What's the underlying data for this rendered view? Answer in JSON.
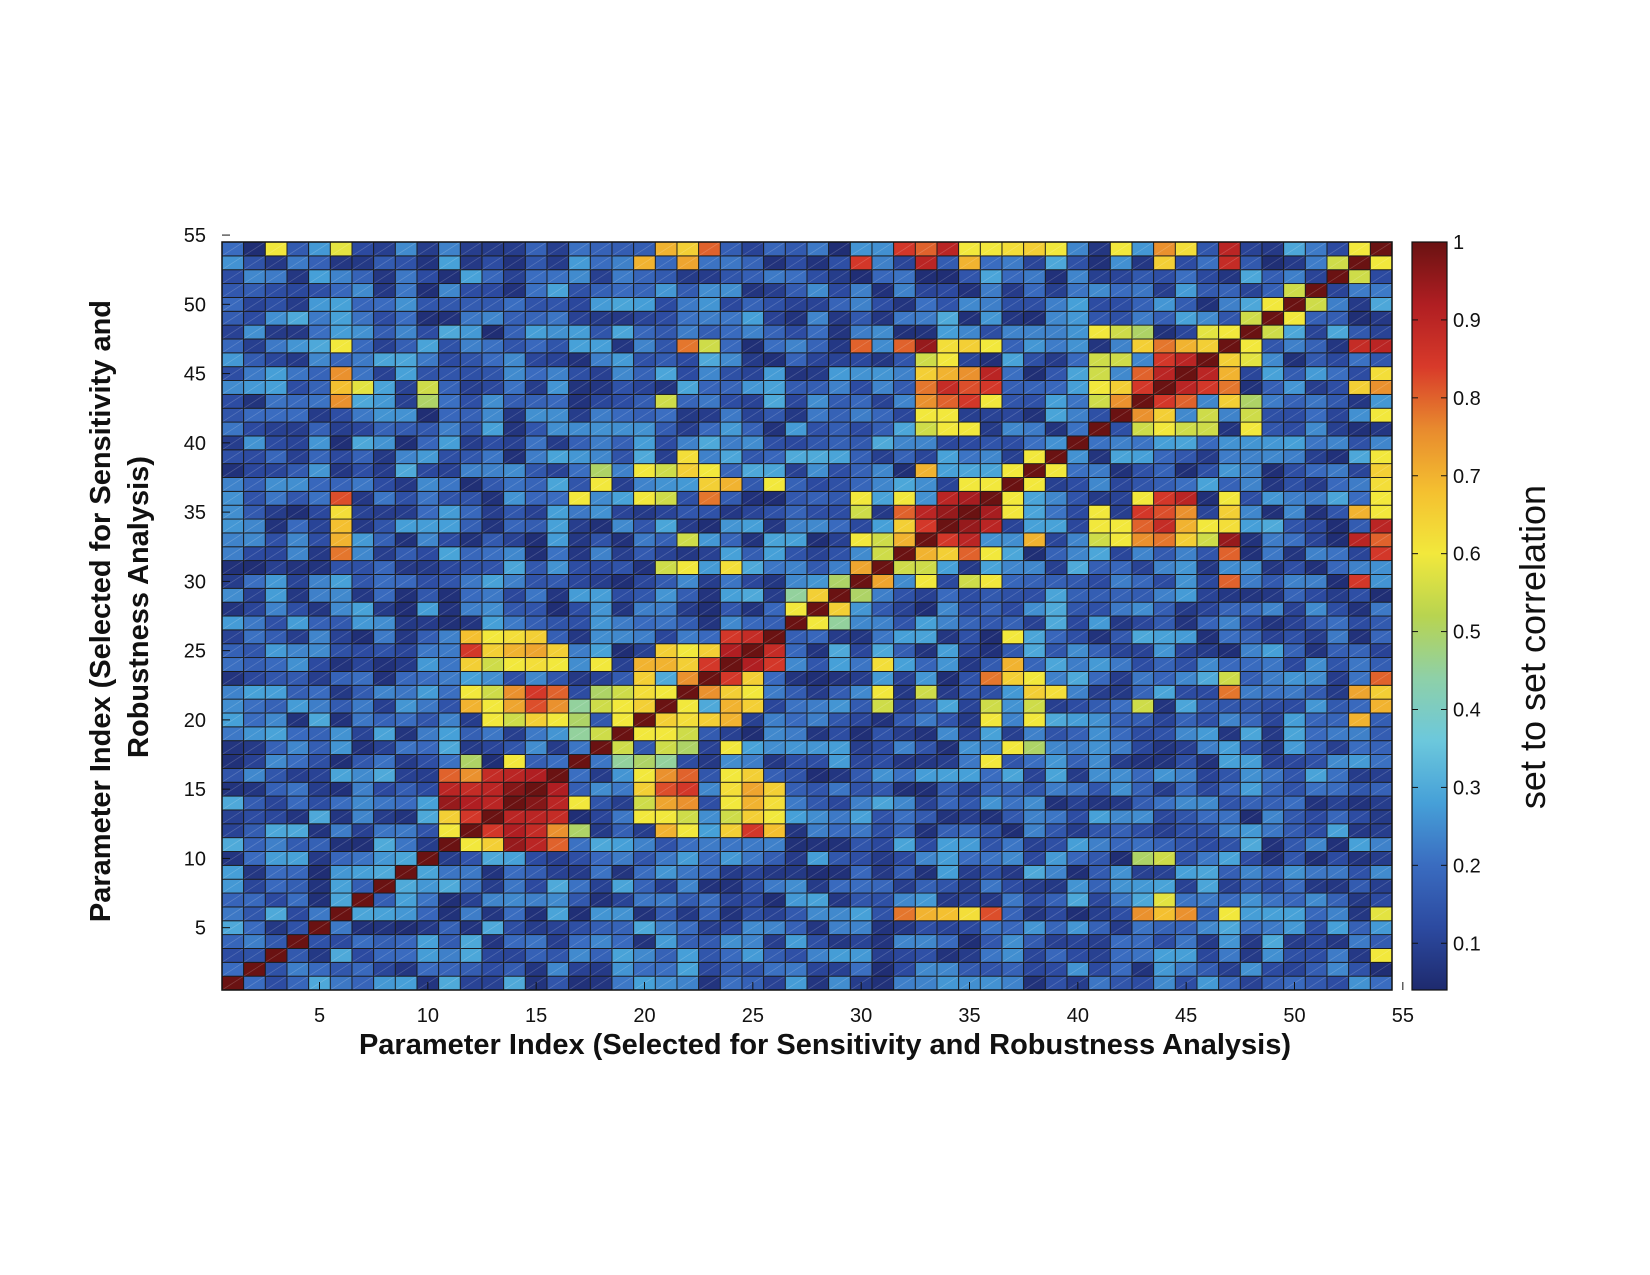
{
  "chart_data": {
    "type": "heatmap",
    "matrix_size": 54,
    "symmetric": true,
    "diagonal_value": 1.0,
    "background_range": [
      0.05,
      0.3
    ],
    "xlabel": "Parameter Index (Selected for Sensitivity and Robustness Analysis)",
    "ylabel_lines": [
      "Parameter Index (Selected for Sensitivity and",
      "Robustness Analysis)"
    ],
    "x_ticks": [
      5,
      10,
      15,
      20,
      25,
      30,
      35,
      40,
      45,
      50,
      55
    ],
    "y_ticks": [
      5,
      10,
      15,
      20,
      25,
      30,
      35,
      40,
      45,
      50,
      55
    ],
    "xlim": [
      0.5,
      54.5
    ],
    "ylim": [
      0.5,
      54.5
    ],
    "colorbar": {
      "label": "set to set correlation",
      "range": [
        0.04,
        1.0
      ],
      "ticks": [
        0.1,
        0.2,
        0.3,
        0.4,
        0.5,
        0.6,
        0.7,
        0.8,
        0.9,
        1
      ],
      "colormap": "jet",
      "colors": [
        "#1e2a6e",
        "#2c4aa0",
        "#3a6cc0",
        "#46a0d8",
        "#6cc8dc",
        "#8ed0a8",
        "#b8d450",
        "#f2e83c",
        "#f4c030",
        "#e88a2e",
        "#d83a2a",
        "#b01e22",
        "#6a1212"
      ]
    },
    "highlighted_cells": [
      [
        13,
        12,
        0.85
      ],
      [
        14,
        12,
        0.92
      ],
      [
        15,
        12,
        0.88
      ],
      [
        16,
        12,
        0.75
      ],
      [
        13,
        11,
        0.65
      ],
      [
        14,
        11,
        0.95
      ],
      [
        15,
        11,
        0.9
      ],
      [
        16,
        11,
        0.8
      ],
      [
        14,
        13,
        0.9
      ],
      [
        15,
        13,
        0.9
      ],
      [
        16,
        13,
        0.88
      ],
      [
        15,
        14,
        0.97
      ],
      [
        16,
        14,
        0.9
      ],
      [
        16,
        15,
        0.92
      ],
      [
        12,
        11,
        0.6
      ],
      [
        17,
        12,
        0.5
      ],
      [
        17,
        14,
        0.6
      ],
      [
        24,
        23,
        0.85
      ],
      [
        25,
        23,
        0.65
      ],
      [
        25,
        24,
        0.92
      ],
      [
        26,
        24,
        0.85
      ],
      [
        26,
        25,
        0.88
      ],
      [
        24,
        21,
        0.7
      ],
      [
        25,
        21,
        0.65
      ],
      [
        25,
        22,
        0.6
      ],
      [
        24,
        22,
        0.65
      ],
      [
        23,
        22,
        0.75
      ],
      [
        22,
        21,
        0.6
      ],
      [
        22,
        20,
        0.62
      ],
      [
        21,
        20,
        0.8
      ],
      [
        23,
        20,
        0.65
      ],
      [
        24,
        20,
        0.7
      ],
      [
        19,
        18,
        0.55
      ],
      [
        20,
        19,
        0.6
      ],
      [
        20,
        17,
        0.4
      ],
      [
        19,
        17,
        0.45
      ],
      [
        13,
        22,
        0.65
      ],
      [
        13,
        21,
        0.6
      ],
      [
        15,
        22,
        0.7
      ],
      [
        15,
        21,
        0.75
      ],
      [
        16,
        22,
        0.8
      ],
      [
        16,
        21,
        0.75
      ],
      [
        15,
        25,
        0.7
      ],
      [
        16,
        25,
        0.65
      ],
      [
        15,
        24,
        0.65
      ],
      [
        16,
        24,
        0.6
      ],
      [
        13,
        25,
        0.62
      ],
      [
        13,
        24,
        0.8
      ],
      [
        14,
        24,
        0.55
      ],
      [
        14,
        25,
        0.5
      ],
      [
        13,
        20,
        0.6
      ],
      [
        14,
        20,
        0.55
      ],
      [
        15,
        20,
        0.65
      ],
      [
        16,
        20,
        0.6
      ],
      [
        21,
        15,
        0.82
      ],
      [
        22,
        15,
        0.85
      ],
      [
        21,
        14,
        0.72
      ],
      [
        22,
        14,
        0.75
      ],
      [
        21,
        13,
        0.6
      ],
      [
        22,
        13,
        0.55
      ],
      [
        21,
        12,
        0.7
      ],
      [
        22,
        12,
        0.6
      ],
      [
        24,
        15,
        0.62
      ],
      [
        25,
        15,
        0.72
      ],
      [
        26,
        15,
        0.65
      ],
      [
        24,
        14,
        0.6
      ],
      [
        25,
        14,
        0.7
      ],
      [
        26,
        14,
        0.62
      ],
      [
        24,
        13,
        0.55
      ],
      [
        25,
        13,
        0.65
      ],
      [
        26,
        13,
        0.6
      ],
      [
        24,
        12,
        0.65
      ],
      [
        25,
        12,
        0.85
      ],
      [
        26,
        12,
        0.68
      ],
      [
        28,
        27,
        0.6
      ],
      [
        29,
        28,
        0.65
      ],
      [
        30,
        29,
        0.5
      ],
      [
        29,
        27,
        0.45
      ],
      [
        34,
        33,
        0.92
      ],
      [
        35,
        33,
        0.85
      ],
      [
        35,
        34,
        0.95
      ],
      [
        36,
        34,
        0.9
      ],
      [
        36,
        35,
        0.93
      ],
      [
        32,
        31,
        0.55
      ],
      [
        33,
        32,
        0.7
      ],
      [
        34,
        32,
        0.65
      ],
      [
        35,
        32,
        0.8
      ],
      [
        36,
        32,
        0.6
      ],
      [
        33,
        31,
        0.55
      ],
      [
        33,
        35,
        0.9
      ],
      [
        33,
        34,
        0.85
      ],
      [
        37,
        35,
        0.6
      ],
      [
        37,
        36,
        0.55
      ],
      [
        38,
        37,
        0.65
      ],
      [
        39,
        38,
        0.6
      ],
      [
        43,
        42,
        0.75
      ],
      [
        44,
        42,
        0.65
      ],
      [
        44,
        43,
        0.85
      ],
      [
        45,
        43,
        0.8
      ],
      [
        45,
        44,
        0.9
      ],
      [
        46,
        44,
        0.85
      ],
      [
        46,
        45,
        0.9
      ],
      [
        47,
        45,
        0.8
      ],
      [
        47,
        46,
        0.85
      ],
      [
        44,
        41,
        0.6
      ],
      [
        45,
        41,
        0.55
      ],
      [
        43,
        41,
        0.55
      ],
      [
        48,
        47,
        0.6
      ],
      [
        49,
        48,
        0.55
      ],
      [
        50,
        49,
        0.6
      ],
      [
        51,
        50,
        0.55
      ],
      [
        33,
        45,
        0.78
      ],
      [
        34,
        45,
        0.82
      ],
      [
        35,
        45,
        0.88
      ],
      [
        36,
        45,
        0.9
      ],
      [
        33,
        44,
        0.75
      ],
      [
        34,
        44,
        0.8
      ],
      [
        35,
        44,
        0.78
      ],
      [
        36,
        44,
        0.85
      ],
      [
        33,
        46,
        0.55
      ],
      [
        34,
        46,
        0.6
      ],
      [
        33,
        43,
        0.6
      ],
      [
        36,
        43,
        0.6
      ],
      [
        43,
        35,
        0.85
      ],
      [
        44,
        35,
        0.82
      ],
      [
        45,
        35,
        0.75
      ],
      [
        43,
        34,
        0.8
      ],
      [
        44,
        34,
        0.88
      ],
      [
        45,
        34,
        0.7
      ],
      [
        43,
        33,
        0.75
      ],
      [
        44,
        33,
        0.78
      ],
      [
        45,
        33,
        0.65
      ],
      [
        46,
        34,
        0.6
      ],
      [
        41,
        35,
        0.6
      ],
      [
        42,
        34,
        0.6
      ],
      [
        6,
        35,
        0.75
      ],
      [
        6,
        34,
        0.7
      ],
      [
        6,
        33,
        0.65
      ],
      [
        6,
        45,
        0.75
      ],
      [
        6,
        44,
        0.7
      ],
      [
        32,
        6,
        0.78
      ],
      [
        33,
        6,
        0.7
      ],
      [
        34,
        6,
        0.68
      ],
      [
        35,
        6,
        0.62
      ],
      [
        36,
        6,
        0.82
      ],
      [
        43,
        6,
        0.75
      ],
      [
        44,
        6,
        0.72
      ],
      [
        47,
        6,
        0.65
      ],
      [
        31,
        30,
        0.72
      ],
      [
        47,
        30,
        0.8
      ],
      [
        53,
        30,
        0.85
      ],
      [
        33,
        30,
        0.6
      ],
      [
        35,
        30,
        0.55
      ],
      [
        36,
        30,
        0.6
      ],
      [
        47,
        33,
        0.82
      ],
      [
        47,
        34,
        0.7
      ],
      [
        47,
        35,
        0.65
      ],
      [
        47,
        36,
        0.6
      ],
      [
        47,
        43,
        0.65
      ],
      [
        47,
        44,
        0.6
      ],
      [
        53,
        33,
        0.9
      ],
      [
        53,
        35,
        0.7
      ],
      [
        53,
        44,
        0.65
      ],
      [
        53,
        47,
        0.9
      ],
      [
        53,
        22,
        0.72
      ],
      [
        53,
        20,
        0.7
      ],
      [
        54,
        53,
        0.6
      ],
      [
        53,
        52,
        0.55
      ],
      [
        33,
        54,
        0.8
      ],
      [
        34,
        54,
        0.9
      ],
      [
        35,
        54,
        0.6
      ],
      [
        36,
        54,
        0.6
      ],
      [
        37,
        54,
        0.62
      ],
      [
        38,
        54,
        0.65
      ],
      [
        39,
        54,
        0.6
      ],
      [
        42,
        54,
        0.6
      ],
      [
        44,
        54,
        0.75
      ],
      [
        45,
        54,
        0.62
      ],
      [
        47,
        54,
        0.9
      ],
      [
        32,
        54,
        0.85
      ],
      [
        23,
        54,
        0.8
      ],
      [
        22,
        54,
        0.65
      ],
      [
        21,
        54,
        0.7
      ],
      [
        3,
        54,
        0.6
      ],
      [
        6,
        54,
        0.58
      ],
      [
        32,
        47,
        0.8
      ],
      [
        33,
        47,
        0.95
      ],
      [
        34,
        47,
        0.62
      ],
      [
        35,
        47,
        0.65
      ],
      [
        36,
        47,
        0.6
      ],
      [
        44,
        47,
        0.78
      ],
      [
        45,
        47,
        0.7
      ],
      [
        46,
        47,
        0.65
      ],
      [
        6,
        47,
        0.6
      ],
      [
        53,
        47,
        0.88
      ],
      [
        22,
        47,
        0.78
      ],
      [
        23,
        47,
        0.55
      ],
      [
        21,
        43,
        0.6
      ],
      [
        38,
        37,
        0.55
      ],
      [
        36,
        37,
        0.6
      ],
      [
        33,
        38,
        0.7
      ],
      [
        37,
        38,
        0.6
      ],
      [
        18,
        37,
        0.6
      ],
      [
        18,
        38,
        0.5
      ],
      [
        18,
        24,
        0.6
      ],
      [
        17,
        20,
        0.5
      ],
      [
        17,
        21,
        0.45
      ],
      [
        21,
        18,
        0.55
      ],
      [
        21,
        19,
        0.6
      ],
      [
        21,
        20,
        0.65
      ],
      [
        22,
        19,
        0.55
      ],
      [
        22,
        18,
        0.5
      ],
      [
        31,
        22,
        0.6
      ],
      [
        31,
        21,
        0.55
      ],
      [
        36,
        20,
        0.6
      ],
      [
        36,
        21,
        0.55
      ],
      [
        37,
        23,
        0.7
      ],
      [
        39,
        22,
        0.62
      ],
      [
        23,
        37,
        0.65
      ],
      [
        23,
        36,
        0.78
      ],
      [
        24,
        37,
        0.7
      ],
      [
        26,
        37,
        0.6
      ],
      [
        24,
        31,
        0.62
      ],
      [
        22,
        33,
        0.55
      ],
      [
        36,
        17,
        0.6
      ],
      [
        38,
        20,
        0.6
      ],
      [
        38,
        21,
        0.55
      ],
      [
        38,
        22,
        0.65
      ],
      [
        38,
        23,
        0.6
      ],
      [
        6,
        44,
        0.68
      ],
      [
        7,
        44,
        0.58
      ],
      [
        10,
        44,
        0.55
      ],
      [
        10,
        43,
        0.5
      ],
      [
        21,
        43,
        0.55
      ],
      [
        41,
        33,
        0.55
      ],
      [
        41,
        34,
        0.6
      ],
      [
        42,
        33,
        0.6
      ],
      [
        41,
        46,
        0.55
      ],
      [
        42,
        46,
        0.55
      ],
      [
        48,
        41,
        0.6
      ],
      [
        48,
        42,
        0.55
      ],
      [
        48,
        43,
        0.5
      ],
      [
        48,
        46,
        0.58
      ]
    ]
  }
}
